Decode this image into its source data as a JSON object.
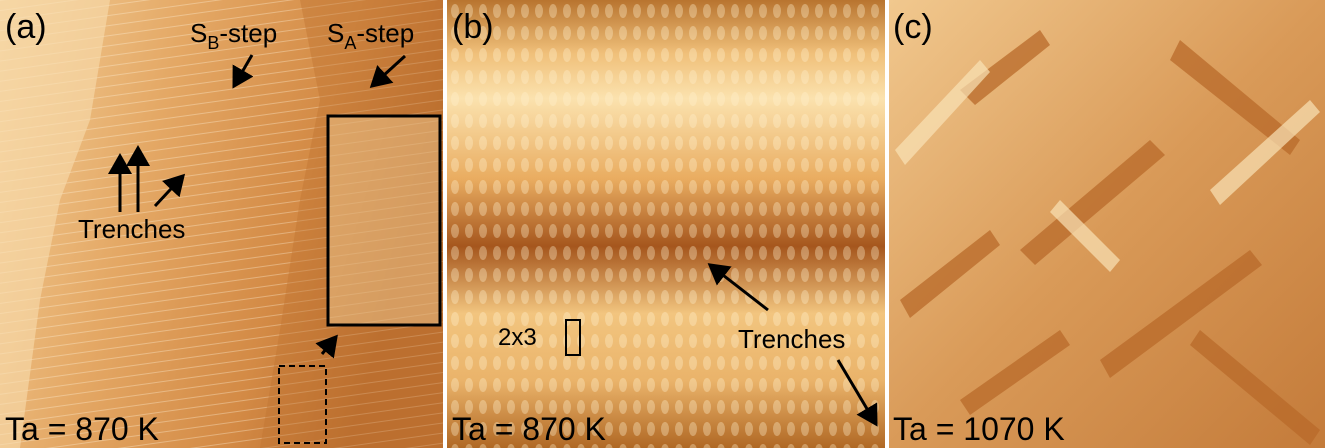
{
  "panels": [
    {
      "label": "(a)",
      "sb_step": {
        "base": "S",
        "sub": "B",
        "rest": "-step"
      },
      "sa_step": {
        "base": "S",
        "sub": "A",
        "rest": "-step"
      },
      "trenches": "Trenches",
      "temperature": "Ta = 870 K"
    },
    {
      "label": "(b)",
      "cell": "2x3",
      "trenches": "Trenches",
      "temperature": "Ta = 870 K"
    },
    {
      "label": "(c)",
      "temperature": "Ta = 1070 K"
    }
  ]
}
